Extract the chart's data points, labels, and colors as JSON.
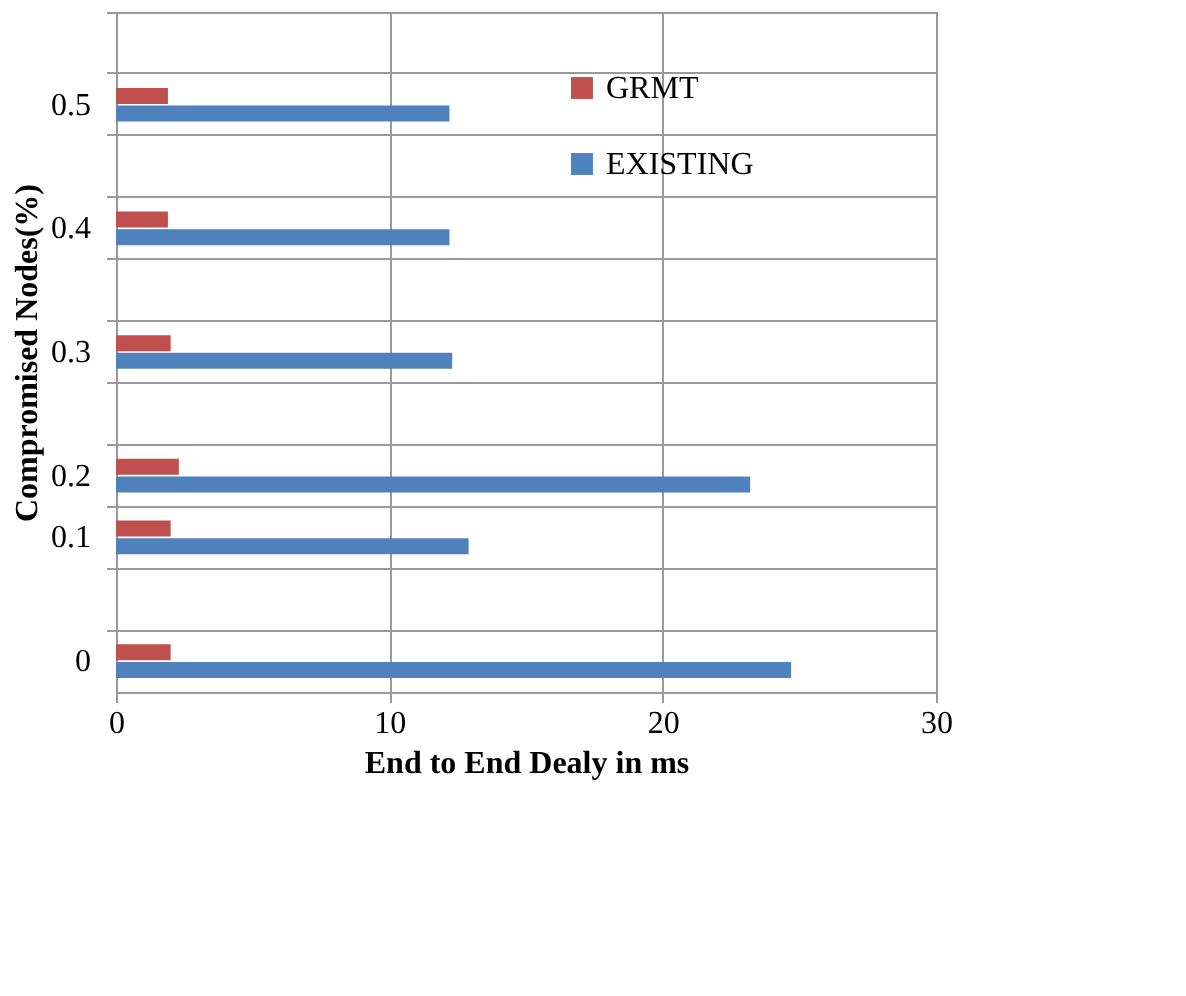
{
  "chart_data": {
    "type": "bar",
    "orientation": "horizontal",
    "xlabel": "End to End Dealy in ms",
    "ylabel": "Compromised Nodes(%)",
    "categories": [
      null,
      "0.5",
      null,
      "0.4",
      null,
      "0.3",
      null,
      "0.2",
      "0.1",
      null,
      "0"
    ],
    "series": [
      {
        "name": "GRMT",
        "color": "#c0504d",
        "values": [
          null,
          1.9,
          null,
          1.9,
          null,
          2.0,
          null,
          2.3,
          2.0,
          null,
          2.0
        ]
      },
      {
        "name": "EXISTING",
        "color": "#4f81bd",
        "values": [
          null,
          12.2,
          null,
          12.2,
          null,
          12.3,
          null,
          23.2,
          12.9,
          null,
          24.7
        ]
      }
    ],
    "xlim": [
      0,
      30
    ],
    "xticks": [
      0,
      10,
      20,
      30
    ],
    "grid": true,
    "legend": "top right"
  }
}
